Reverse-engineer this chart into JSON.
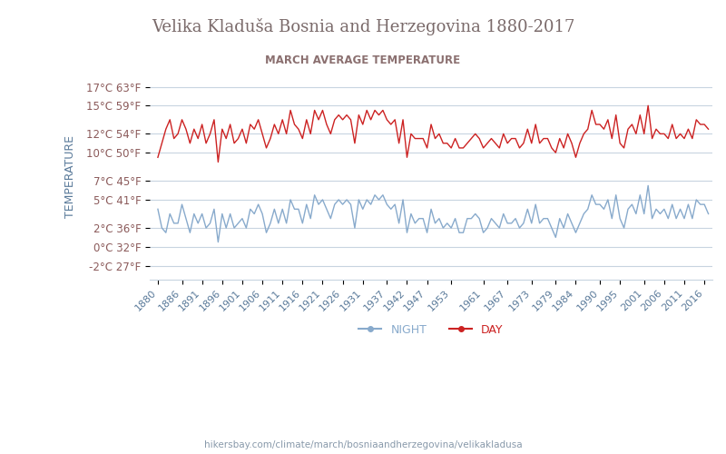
{
  "title": "Velika Kladuša Bosnia and Herzegovina 1880-2017",
  "subtitle": "MARCH AVERAGE TEMPERATURE",
  "ylabel": "TEMPERATURE",
  "background_color": "#ffffff",
  "plot_bg_color": "#ffffff",
  "grid_color": "#c8d4e0",
  "title_color": "#7a6a6a",
  "subtitle_color": "#8b7070",
  "ylabel_color": "#5a7a9a",
  "ytick_color": "#8b5a5a",
  "xtick_color": "#5a7a9a",
  "day_color": "#cc2222",
  "night_color": "#88aacc",
  "watermark": "hikersbay.com/climate/march/bosniaandherzegovina/velikakladusa",
  "x_labels": [
    "1880",
    "1886",
    "1891",
    "1896",
    "1901",
    "1906",
    "1911",
    "1916",
    "1921",
    "1926",
    "1931",
    "1937",
    "1942",
    "1947",
    "1953",
    "1961",
    "1967",
    "1973",
    "1979",
    "1984",
    "1990",
    "1995",
    "2001",
    "2006",
    "2011",
    "2016"
  ],
  "yticks_c": [
    -2,
    0,
    2,
    5,
    7,
    10,
    12,
    15,
    17
  ],
  "yticks_f": [
    27,
    32,
    36,
    41,
    45,
    50,
    54,
    59,
    63
  ],
  "ymin": -3.5,
  "ymax": 18.5,
  "years": [
    1880,
    1881,
    1882,
    1883,
    1884,
    1885,
    1886,
    1887,
    1888,
    1889,
    1890,
    1891,
    1892,
    1893,
    1894,
    1895,
    1896,
    1897,
    1898,
    1899,
    1900,
    1901,
    1902,
    1903,
    1904,
    1905,
    1906,
    1907,
    1908,
    1909,
    1910,
    1911,
    1912,
    1913,
    1914,
    1915,
    1916,
    1917,
    1918,
    1919,
    1920,
    1921,
    1922,
    1923,
    1924,
    1925,
    1926,
    1927,
    1928,
    1929,
    1930,
    1931,
    1932,
    1933,
    1934,
    1935,
    1936,
    1937,
    1938,
    1939,
    1940,
    1941,
    1942,
    1943,
    1944,
    1945,
    1946,
    1947,
    1948,
    1949,
    1950,
    1951,
    1952,
    1953,
    1954,
    1955,
    1956,
    1957,
    1958,
    1959,
    1960,
    1961,
    1962,
    1963,
    1964,
    1965,
    1966,
    1967,
    1968,
    1969,
    1970,
    1971,
    1972,
    1973,
    1974,
    1975,
    1976,
    1977,
    1978,
    1979,
    1980,
    1981,
    1982,
    1983,
    1984,
    1985,
    1986,
    1987,
    1988,
    1989,
    1990,
    1991,
    1992,
    1993,
    1994,
    1995,
    1996,
    1997,
    1998,
    1999,
    2000,
    2001,
    2002,
    2003,
    2004,
    2005,
    2006,
    2007,
    2008,
    2009,
    2010,
    2011,
    2012,
    2013,
    2014,
    2015,
    2016,
    2017
  ],
  "day_temps": [
    9.5,
    11.0,
    12.5,
    13.5,
    11.5,
    12.0,
    13.5,
    12.5,
    11.0,
    12.5,
    11.5,
    13.0,
    11.0,
    12.0,
    13.5,
    9.0,
    12.5,
    11.5,
    13.0,
    11.0,
    11.5,
    12.5,
    11.0,
    13.0,
    12.5,
    13.5,
    12.0,
    10.5,
    11.5,
    13.0,
    12.0,
    13.5,
    12.0,
    14.5,
    13.0,
    12.5,
    11.5,
    13.5,
    12.0,
    14.5,
    13.5,
    14.5,
    13.0,
    12.0,
    13.5,
    14.0,
    13.5,
    14.0,
    13.5,
    11.0,
    14.0,
    13.0,
    14.5,
    13.5,
    14.5,
    14.0,
    14.5,
    13.5,
    13.0,
    13.5,
    11.0,
    13.5,
    9.5,
    12.0,
    11.5,
    11.5,
    11.5,
    10.5,
    13.0,
    11.5,
    12.0,
    11.0,
    11.0,
    10.5,
    11.5,
    10.5,
    10.5,
    11.0,
    11.5,
    12.0,
    11.5,
    10.5,
    11.0,
    11.5,
    11.0,
    10.5,
    12.0,
    11.0,
    11.5,
    11.5,
    10.5,
    11.0,
    12.5,
    11.0,
    13.0,
    11.0,
    11.5,
    11.5,
    10.5,
    10.0,
    11.5,
    10.5,
    12.0,
    11.0,
    9.5,
    11.0,
    12.0,
    12.5,
    14.5,
    13.0,
    13.0,
    12.5,
    13.5,
    11.5,
    14.0,
    11.0,
    10.5,
    12.5,
    13.0,
    12.0,
    14.0,
    12.0,
    15.0,
    11.5,
    12.5,
    12.0,
    12.0,
    11.5,
    13.0,
    11.5,
    12.0,
    11.5,
    12.5,
    11.5,
    13.5,
    13.0,
    13.0,
    12.5
  ],
  "night_temps": [
    4.0,
    2.0,
    1.5,
    3.5,
    2.5,
    2.5,
    4.5,
    3.0,
    1.5,
    3.5,
    2.5,
    3.5,
    2.0,
    2.5,
    4.0,
    0.5,
    3.5,
    2.0,
    3.5,
    2.0,
    2.5,
    3.0,
    2.0,
    4.0,
    3.5,
    4.5,
    3.5,
    1.5,
    2.5,
    4.0,
    2.5,
    4.0,
    2.5,
    5.0,
    4.0,
    4.0,
    2.5,
    4.5,
    3.0,
    5.5,
    4.5,
    5.0,
    4.0,
    3.0,
    4.5,
    5.0,
    4.5,
    5.0,
    4.5,
    2.0,
    5.0,
    4.0,
    5.0,
    4.5,
    5.5,
    5.0,
    5.5,
    4.5,
    4.0,
    4.5,
    2.5,
    5.0,
    1.5,
    3.5,
    2.5,
    3.0,
    3.0,
    1.5,
    4.0,
    2.5,
    3.0,
    2.0,
    2.5,
    2.0,
    3.0,
    1.5,
    1.5,
    3.0,
    3.0,
    3.5,
    3.0,
    1.5,
    2.0,
    3.0,
    2.5,
    2.0,
    3.5,
    2.5,
    2.5,
    3.0,
    2.0,
    2.5,
    4.0,
    2.5,
    4.5,
    2.5,
    3.0,
    3.0,
    2.0,
    1.0,
    3.0,
    2.0,
    3.5,
    2.5,
    1.5,
    2.5,
    3.5,
    4.0,
    5.5,
    4.5,
    4.5,
    4.0,
    5.0,
    3.0,
    5.5,
    3.0,
    2.0,
    4.0,
    4.5,
    3.5,
    5.5,
    3.5,
    6.5,
    3.0,
    4.0,
    3.5,
    4.0,
    3.0,
    4.5,
    3.0,
    4.0,
    3.0,
    4.5,
    3.0,
    5.0,
    4.5,
    4.5,
    3.5
  ]
}
